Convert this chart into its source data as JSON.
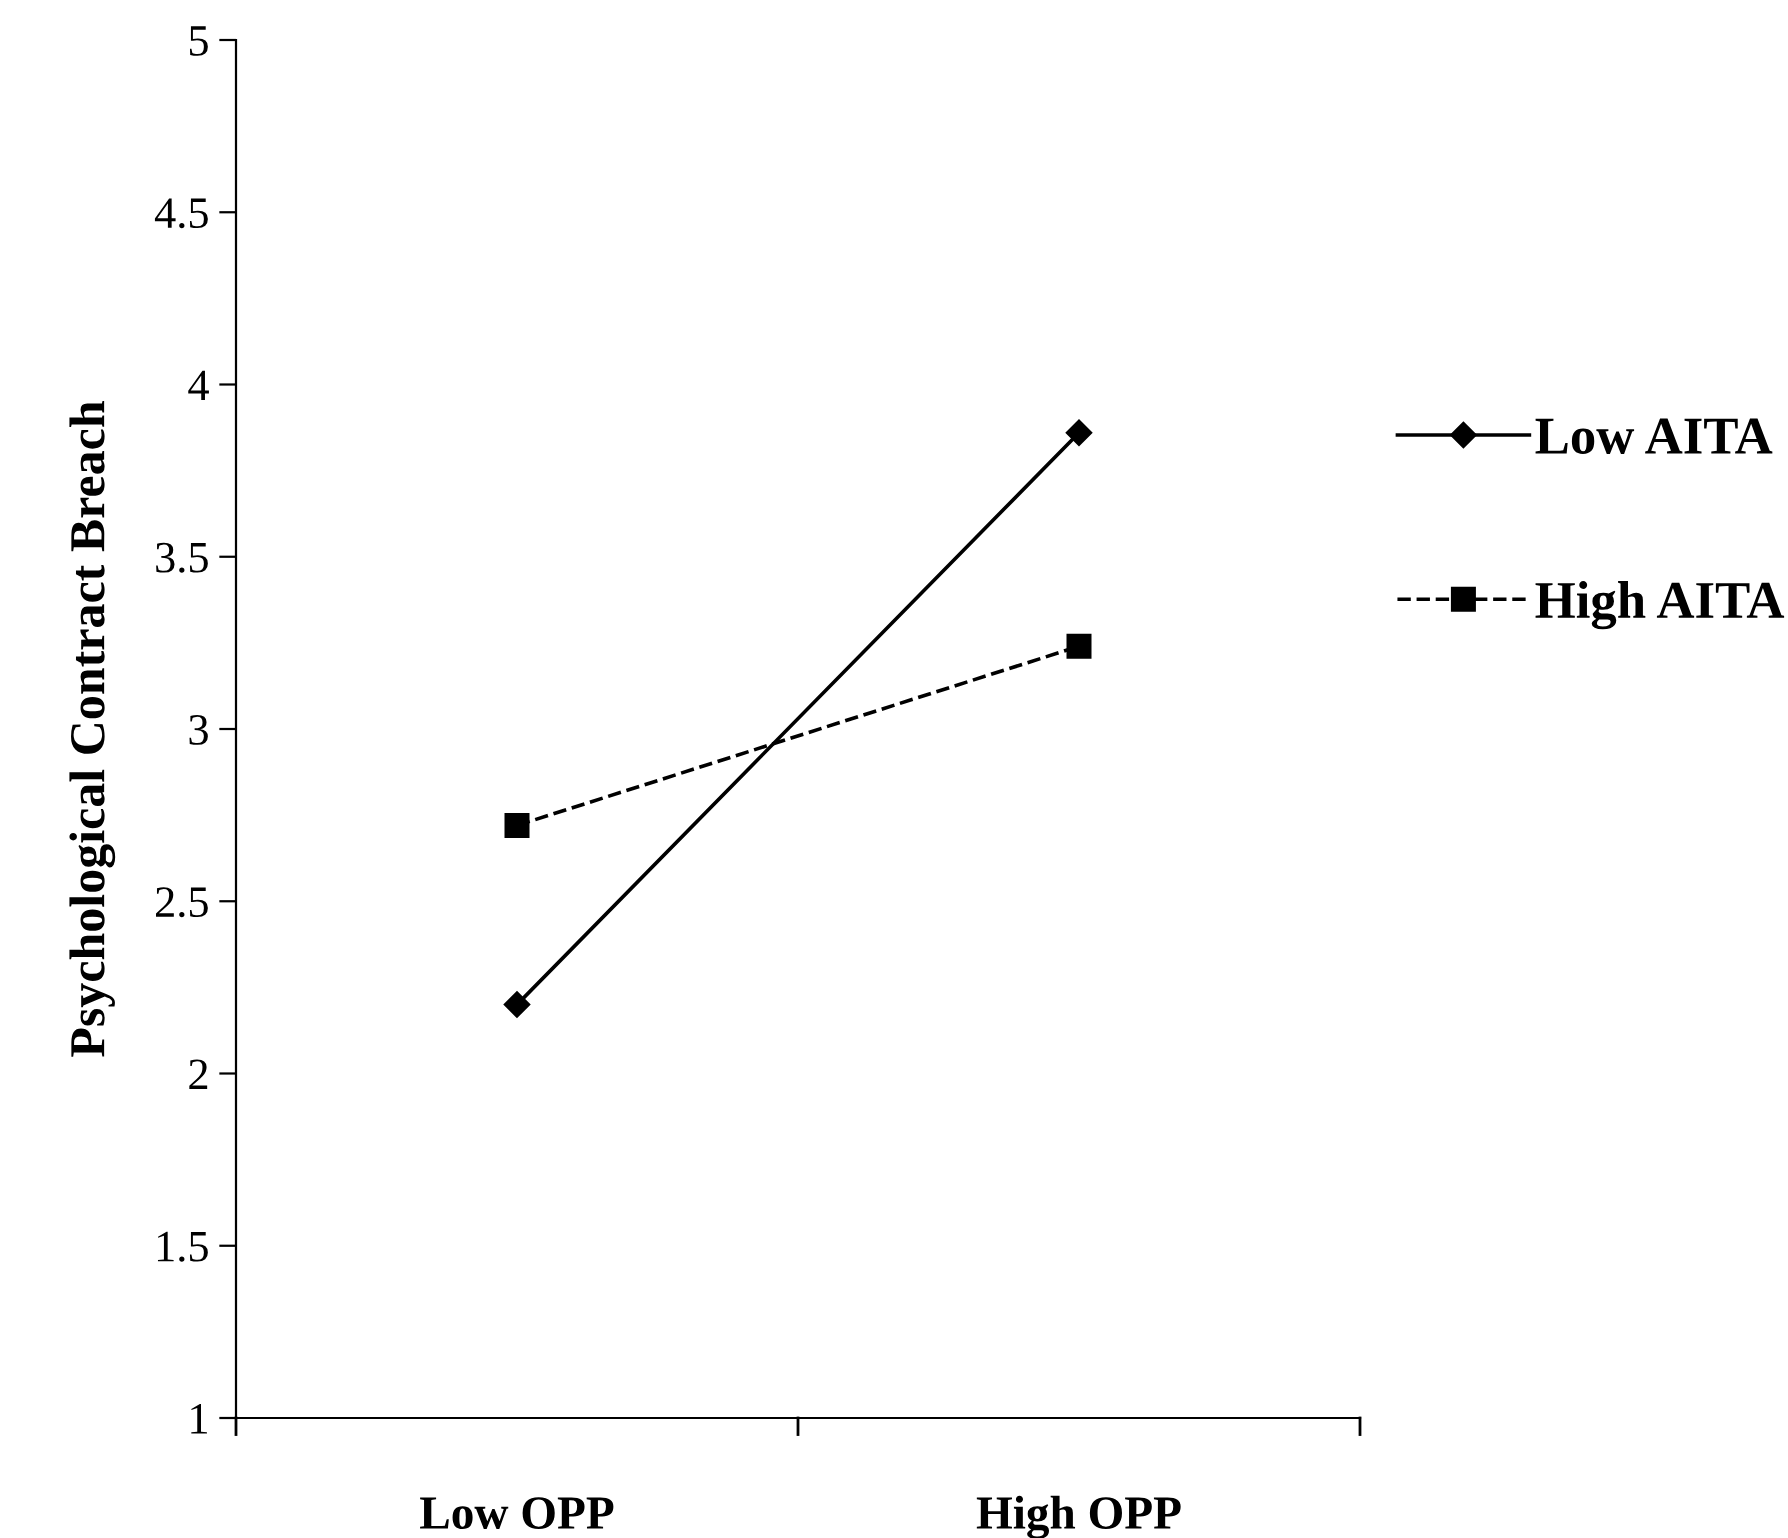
{
  "chart_data": {
    "type": "line",
    "ylabel": "Psychological Contract Breach",
    "categories": [
      "Low OPP",
      "High OPP"
    ],
    "series": [
      {
        "name": "Low AITA",
        "color": "#000000",
        "values": [
          2.2,
          3.86
        ],
        "marker": "diamond",
        "line_style": "solid"
      },
      {
        "name": "High AITA",
        "color": "#000000",
        "values": [
          2.72,
          3.24
        ],
        "marker": "square",
        "line_style": "dashed"
      }
    ],
    "ylim": [
      1,
      5
    ],
    "yticks": [
      1,
      1.5,
      2,
      2.5,
      3,
      3.5,
      4,
      4.5,
      5
    ],
    "grid": false,
    "legend": "right"
  }
}
